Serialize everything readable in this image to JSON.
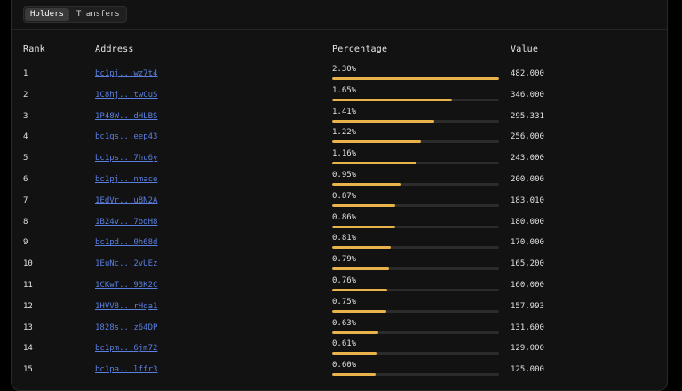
{
  "tabs": [
    {
      "label": "Holders",
      "active": true
    },
    {
      "label": "Transfers",
      "active": false
    }
  ],
  "table": {
    "headers": {
      "rank": "Rank",
      "address": "Address",
      "percentage": "Percentage",
      "value": "Value"
    },
    "rows": [
      {
        "rank": "1",
        "address": "bc1pj...wz7t4",
        "percentage": "2.30%",
        "share": 1.0,
        "value": "482,000"
      },
      {
        "rank": "2",
        "address": "1C8hj...twCuS",
        "percentage": "1.65%",
        "share": 0.72,
        "value": "346,000"
      },
      {
        "rank": "3",
        "address": "1P48W...dHLBS",
        "percentage": "1.41%",
        "share": 0.61,
        "value": "295,331"
      },
      {
        "rank": "4",
        "address": "bc1qs...eep43",
        "percentage": "1.22%",
        "share": 0.53,
        "value": "256,000"
      },
      {
        "rank": "5",
        "address": "bc1ps...7hu6y",
        "percentage": "1.16%",
        "share": 0.505,
        "value": "243,000"
      },
      {
        "rank": "6",
        "address": "bc1pj...nmace",
        "percentage": "0.95%",
        "share": 0.415,
        "value": "200,000"
      },
      {
        "rank": "7",
        "address": "1EdVr...u8N2A",
        "percentage": "0.87%",
        "share": 0.38,
        "value": "183,010"
      },
      {
        "rank": "8",
        "address": "1B24v...7odH8",
        "percentage": "0.86%",
        "share": 0.375,
        "value": "180,000"
      },
      {
        "rank": "9",
        "address": "bc1pd...0h68d",
        "percentage": "0.81%",
        "share": 0.352,
        "value": "170,000"
      },
      {
        "rank": "10",
        "address": "1EuNc...2vUEz",
        "percentage": "0.79%",
        "share": 0.343,
        "value": "165,200"
      },
      {
        "rank": "11",
        "address": "1CKwT...93K2C",
        "percentage": "0.76%",
        "share": 0.33,
        "value": "160,000"
      },
      {
        "rank": "12",
        "address": "1HVV8...rHqa1",
        "percentage": "0.75%",
        "share": 0.326,
        "value": "157,993"
      },
      {
        "rank": "13",
        "address": "1828s...z64DP",
        "percentage": "0.63%",
        "share": 0.274,
        "value": "131,600"
      },
      {
        "rank": "14",
        "address": "bc1pm...6jm72",
        "percentage": "0.61%",
        "share": 0.265,
        "value": "129,000"
      },
      {
        "rank": "15",
        "address": "bc1pa...lffr3",
        "percentage": "0.60%",
        "share": 0.26,
        "value": "125,000"
      }
    ]
  },
  "colors": {
    "accent": "#e7b34a",
    "link": "#5b7fe0",
    "track": "#2b2b2b"
  }
}
